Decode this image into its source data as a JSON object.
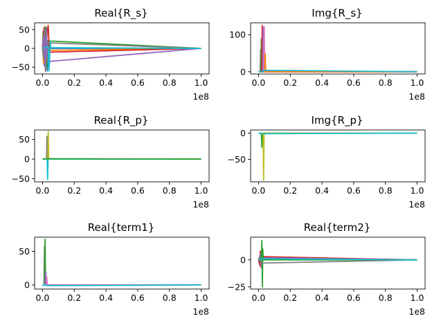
{
  "palette": [
    "#1f77b4",
    "#ff7f0e",
    "#2ca02c",
    "#d62728",
    "#9467bd",
    "#8c564b",
    "#e377c2",
    "#7f7f7f",
    "#bcbd22",
    "#17becf"
  ],
  "chart_data": [
    {
      "type": "line",
      "title": "Real{R_s}",
      "xlabel": "",
      "ylabel": "",
      "xlim": [
        -5000000,
        105000000
      ],
      "ylim": [
        -68,
        68
      ],
      "xticks": [
        0,
        20000000,
        40000000,
        60000000,
        80000000,
        100000000
      ],
      "xtick_labels": [
        "0.0",
        "0.2",
        "0.4",
        "0.6",
        "0.8",
        "1.0"
      ],
      "x_multiplier": "1e8",
      "yticks": [
        -50,
        0,
        50
      ],
      "ytick_labels": [
        "−50",
        "0",
        "50"
      ],
      "grid": false,
      "series": [
        {
          "color_index": 0,
          "x": [
            0,
            500000,
            1000000,
            1500000,
            2000000,
            2500000,
            3000000,
            3500000,
            4000000,
            100000000
          ],
          "y": [
            0,
            30,
            -45,
            50,
            -20,
            55,
            -60,
            10,
            0,
            0
          ]
        },
        {
          "color_index": 1,
          "x": [
            0,
            700000,
            1400000,
            2100000,
            2800000,
            3500000,
            4200000,
            100000000
          ],
          "y": [
            0,
            -40,
            58,
            -55,
            35,
            62,
            -5,
            0
          ]
        },
        {
          "color_index": 2,
          "x": [
            0,
            400000,
            1200000,
            2000000,
            2600000,
            3200000,
            100000000
          ],
          "y": [
            0,
            45,
            -30,
            57,
            -50,
            20,
            0
          ]
        },
        {
          "color_index": 3,
          "x": [
            0,
            900000,
            1800000,
            2700000,
            3600000,
            4300000,
            100000000
          ],
          "y": [
            0,
            55,
            -58,
            40,
            60,
            -10,
            0
          ]
        },
        {
          "color_index": 7,
          "x": [
            0,
            600000,
            1300000,
            1900000,
            2500000,
            100000000
          ],
          "y": [
            0,
            -25,
            55,
            -62,
            15,
            0
          ]
        },
        {
          "color_index": 4,
          "x": [
            0,
            800000,
            1600000,
            2400000,
            3300000,
            100000000
          ],
          "y": [
            0,
            35,
            -50,
            52,
            -35,
            0
          ]
        },
        {
          "color_index": 9,
          "x": [
            0,
            3600000,
            4000000,
            4400000,
            4800000,
            5200000,
            100000000
          ],
          "y": [
            0,
            5,
            -60,
            -40,
            20,
            2,
            0
          ]
        }
      ]
    },
    {
      "type": "line",
      "title": "Img{R_s}",
      "xlabel": "",
      "ylabel": "",
      "xlim": [
        -5000000,
        105000000
      ],
      "ylim": [
        -6,
        132
      ],
      "xticks": [
        0,
        20000000,
        40000000,
        60000000,
        80000000,
        100000000
      ],
      "xtick_labels": [
        "0.0",
        "0.2",
        "0.4",
        "0.6",
        "0.8",
        "1.0"
      ],
      "x_multiplier": "1e8",
      "yticks": [
        0,
        100
      ],
      "ytick_labels": [
        "0",
        "100"
      ],
      "grid": false,
      "series": [
        {
          "color_index": 7,
          "x": [
            0,
            1000000,
            1300000,
            1600000,
            100000000
          ],
          "y": [
            0,
            0,
            60,
            0,
            0
          ]
        },
        {
          "color_index": 2,
          "x": [
            0,
            1500000,
            1800000,
            2100000,
            100000000
          ],
          "y": [
            0,
            0,
            90,
            0,
            0
          ]
        },
        {
          "color_index": 3,
          "x": [
            0,
            2000000,
            2300000,
            2600000,
            100000000
          ],
          "y": [
            0,
            0,
            125,
            0,
            0
          ]
        },
        {
          "color_index": 4,
          "x": [
            0,
            2600000,
            2900000,
            3200000,
            100000000
          ],
          "y": [
            0,
            0,
            120,
            0,
            0
          ]
        },
        {
          "color_index": 6,
          "x": [
            0,
            3300000,
            3600000,
            3900000,
            100000000
          ],
          "y": [
            0,
            0,
            122,
            0,
            0
          ]
        },
        {
          "color_index": 1,
          "x": [
            0,
            3900000,
            4200000,
            4500000,
            100000000
          ],
          "y": [
            0,
            0,
            50,
            0,
            0
          ]
        },
        {
          "color_index": 9,
          "x": [
            0,
            3000000,
            3400000,
            100000000
          ],
          "y": [
            0,
            0,
            4,
            0
          ]
        }
      ]
    },
    {
      "type": "line",
      "title": "Real{R_p}",
      "xlabel": "",
      "ylabel": "",
      "xlim": [
        -5000000,
        105000000
      ],
      "ylim": [
        -58,
        74
      ],
      "xticks": [
        0,
        20000000,
        40000000,
        60000000,
        80000000,
        100000000
      ],
      "xtick_labels": [
        "0.0",
        "0.2",
        "0.4",
        "0.6",
        "0.8",
        "1.0"
      ],
      "x_multiplier": "1e8",
      "yticks": [
        -50,
        0,
        50
      ],
      "ytick_labels": [
        "−50",
        "0",
        "50"
      ],
      "grid": false,
      "series": [
        {
          "color_index": 7,
          "x": [
            0,
            2500000,
            2800000,
            3100000,
            100000000
          ],
          "y": [
            0,
            0,
            58,
            0,
            0
          ]
        },
        {
          "color_index": 8,
          "x": [
            0,
            3300000,
            3600000,
            3900000,
            100000000
          ],
          "y": [
            0,
            0,
            70,
            0,
            0
          ]
        },
        {
          "color_index": 9,
          "x": [
            0,
            2900000,
            3200000,
            3500000,
            100000000
          ],
          "y": [
            0,
            0,
            -52,
            0,
            0
          ]
        },
        {
          "color_index": 2,
          "x": [
            0,
            3000000,
            100000000
          ],
          "y": [
            0,
            1,
            0
          ]
        }
      ]
    },
    {
      "type": "line",
      "title": "Img{R_p}",
      "xlabel": "",
      "ylabel": "",
      "xlim": [
        -5000000,
        105000000
      ],
      "ylim": [
        -93,
        6
      ],
      "xticks": [
        0,
        20000000,
        40000000,
        60000000,
        80000000,
        100000000
      ],
      "xtick_labels": [
        "0.0",
        "0.2",
        "0.4",
        "0.6",
        "0.8",
        "1.0"
      ],
      "x_multiplier": "1e8",
      "yticks": [
        -50,
        0
      ],
      "ytick_labels": [
        "−50",
        "0"
      ],
      "grid": false,
      "series": [
        {
          "color_index": 2,
          "x": [
            0,
            1800000,
            2100000,
            2400000,
            100000000
          ],
          "y": [
            0,
            0,
            -27,
            0,
            0
          ]
        },
        {
          "color_index": 8,
          "x": [
            0,
            2900000,
            3200000,
            3500000,
            100000000
          ],
          "y": [
            0,
            0,
            -90,
            0,
            0
          ]
        },
        {
          "color_index": 9,
          "x": [
            0,
            2000000,
            100000000
          ],
          "y": [
            0,
            -1,
            0
          ]
        }
      ]
    },
    {
      "type": "line",
      "title": "Real{term1}",
      "xlabel": "",
      "ylabel": "",
      "xlim": [
        -5000000,
        105000000
      ],
      "ylim": [
        -6,
        71
      ],
      "xticks": [
        0,
        20000000,
        40000000,
        60000000,
        80000000,
        100000000
      ],
      "xtick_labels": [
        "0.0",
        "0.2",
        "0.4",
        "0.6",
        "0.8",
        "1.0"
      ],
      "x_multiplier": "1e8",
      "yticks": [
        0,
        50
      ],
      "ytick_labels": [
        "0",
        "50"
      ],
      "grid": false,
      "series": [
        {
          "color_index": 7,
          "x": [
            0,
            900000,
            1200000,
            1500000,
            100000000
          ],
          "y": [
            0,
            0,
            57,
            0,
            0
          ]
        },
        {
          "color_index": 2,
          "x": [
            0,
            1300000,
            1600000,
            1900000,
            100000000
          ],
          "y": [
            0,
            0,
            68,
            0,
            0
          ]
        },
        {
          "color_index": 4,
          "x": [
            0,
            1700000,
            2000000,
            2300000,
            2600000,
            100000000
          ],
          "y": [
            0,
            0,
            20,
            2,
            0,
            0
          ]
        },
        {
          "color_index": 6,
          "x": [
            0,
            2400000,
            2700000,
            3000000,
            100000000
          ],
          "y": [
            0,
            0,
            12,
            0,
            0
          ]
        },
        {
          "color_index": 9,
          "x": [
            0,
            1000000,
            2500000,
            100000000
          ],
          "y": [
            -2,
            1,
            -1,
            0
          ]
        }
      ]
    },
    {
      "type": "line",
      "title": "Real{term2}",
      "xlabel": "",
      "ylabel": "",
      "xlim": [
        -5000000,
        105000000
      ],
      "ylim": [
        -27,
        21
      ],
      "xticks": [
        0,
        20000000,
        40000000,
        60000000,
        80000000,
        100000000
      ],
      "xtick_labels": [
        "0.0",
        "0.2",
        "0.4",
        "0.6",
        "0.8",
        "1.0"
      ],
      "x_multiplier": "1e8",
      "yticks": [
        -25,
        0
      ],
      "ytick_labels": [
        "−25",
        "0"
      ],
      "grid": false,
      "series": [
        {
          "color_index": 3,
          "x": [
            0,
            800000,
            1100000,
            1400000,
            1700000,
            100000000
          ],
          "y": [
            0,
            -5,
            8,
            -7,
            3,
            0
          ]
        },
        {
          "color_index": 4,
          "x": [
            0,
            1300000,
            1600000,
            1900000,
            100000000
          ],
          "y": [
            0,
            6,
            -6,
            2,
            0
          ]
        },
        {
          "color_index": 2,
          "x": [
            0,
            1800000,
            2100000,
            2400000,
            2700000,
            3000000,
            100000000
          ],
          "y": [
            0,
            0,
            18,
            -25,
            10,
            0,
            0
          ]
        },
        {
          "color_index": 7,
          "x": [
            0,
            1000000,
            1300000,
            100000000
          ],
          "y": [
            0,
            4,
            -3,
            0
          ]
        },
        {
          "color_index": 9,
          "x": [
            0,
            3000000,
            100000000
          ],
          "y": [
            0,
            1,
            0
          ]
        }
      ]
    }
  ]
}
